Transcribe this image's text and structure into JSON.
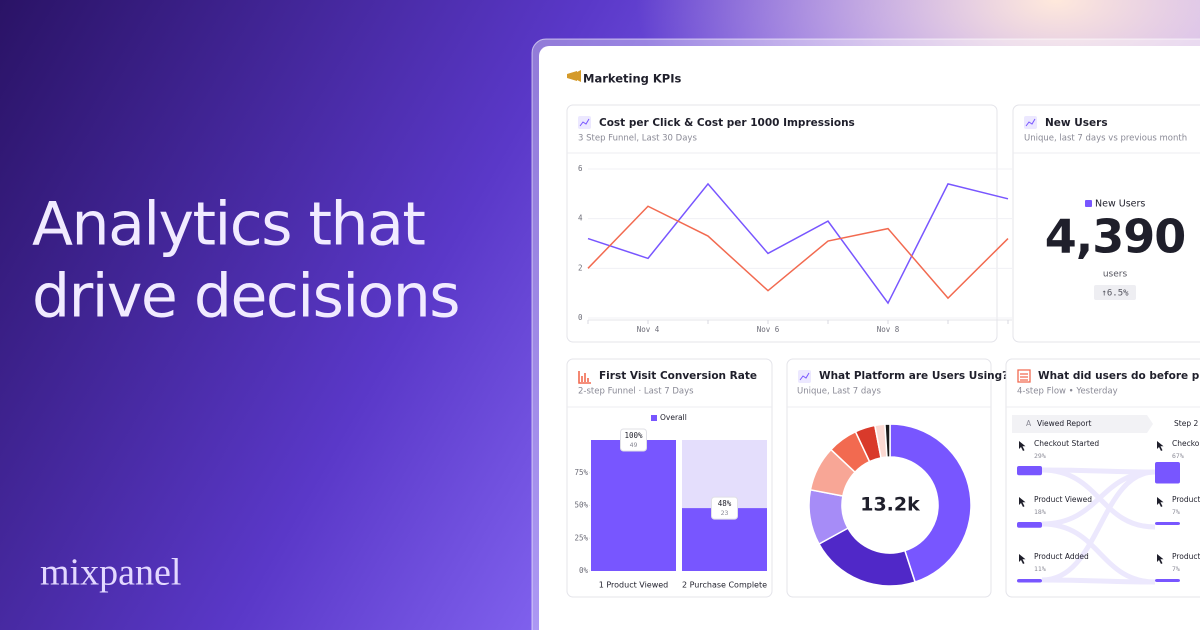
{
  "headline": {
    "line1": "Analytics that",
    "line2": "drive decisions"
  },
  "brand": "mixpanel",
  "dashboard": {
    "title": "Marketing KPIs"
  },
  "chart_data": [
    {
      "type": "line",
      "title": "Cost per Click & Cost per 1000 Impressions",
      "subtitle": "3 Step Funnel, Last 30 Days",
      "categories": [
        null,
        "Nov 4",
        null,
        "Nov 6",
        null,
        "Nov 8",
        null,
        null
      ],
      "series": [
        {
          "color": "#7856ff",
          "values": [
            3.2,
            2.4,
            5.4,
            2.6,
            3.9,
            0.6,
            5.4,
            4.8
          ]
        },
        {
          "color": "#f26a50",
          "values": [
            2.0,
            4.5,
            3.3,
            1.1,
            3.1,
            3.6,
            0.8,
            3.2
          ]
        }
      ],
      "ylim": [
        0,
        6
      ],
      "yticks": [
        0,
        2,
        4,
        6
      ],
      "grid": true
    },
    {
      "type": "bar",
      "title": "First Visit Conversion Rate",
      "subtitle": "2-step Funnel · Last 7 Days",
      "legend": "Overall",
      "categories": [
        "1 Product Viewed",
        "2 Purchase Complete"
      ],
      "values": [
        100,
        48
      ],
      "value_labels": [
        "100%",
        "48%"
      ],
      "counts": [
        49,
        23
      ],
      "color": "#7856ff",
      "background_color": "#e4defc",
      "ylim": [
        0,
        100
      ],
      "yticks": [
        {
          "value": 0,
          "label": "0%"
        },
        {
          "value": 25,
          "label": "25%"
        },
        {
          "value": 50,
          "label": "50%"
        },
        {
          "value": 75,
          "label": "75%"
        }
      ]
    },
    {
      "type": "donut",
      "title": "What Platform are Users Using?",
      "subtitle": "Unique, Last 7 days",
      "center_label": "13.2k",
      "values": [
        45,
        22,
        11,
        9,
        6,
        4,
        2,
        1
      ],
      "colors": [
        "#7856ff",
        "#5028c8",
        "#a68cf7",
        "#f8a696",
        "#f26a50",
        "#d93a2b",
        "#fbd9d2",
        "#1b1b1b"
      ]
    }
  ],
  "kpi": {
    "title": "New Users",
    "subtitle": "Unique, last 7 days vs previous month",
    "legend": "New Users",
    "value": "4,390",
    "unit": "users",
    "change": "↑6.5%"
  },
  "flow": {
    "title": "What did users do before purchase",
    "subtitle": "4-step Flow • Yesterday",
    "steps": [
      {
        "marker": "A",
        "label": "Viewed Report"
      },
      {
        "label": "Step 2"
      }
    ],
    "columns": [
      [
        {
          "label": "Checkout Started",
          "percent": {
            "value": 29,
            "label": "29%"
          }
        },
        {
          "label": "Product Viewed",
          "percent": {
            "value": 18,
            "label": "18%"
          }
        },
        {
          "label": "Product Added",
          "percent": {
            "value": 11,
            "label": "11%"
          }
        }
      ],
      [
        {
          "label": "Checkout",
          "percent": {
            "value": 67,
            "label": "67%"
          }
        },
        {
          "label": "Product",
          "percent": {
            "value": 7,
            "label": "7%"
          }
        },
        {
          "label": "Product",
          "percent": {
            "value": 7,
            "label": "7%"
          }
        }
      ]
    ]
  }
}
